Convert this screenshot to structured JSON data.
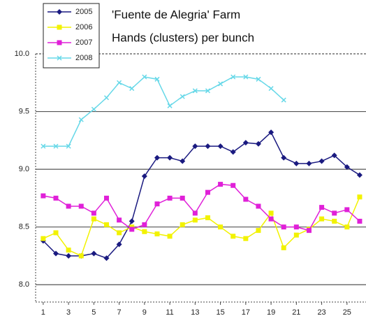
{
  "chart_data": {
    "type": "line",
    "title": "'Fuente de Alegria' Farm",
    "subtitle": "Hands (clusters) per bunch",
    "x": [
      1,
      2,
      3,
      4,
      5,
      6,
      7,
      8,
      9,
      10,
      11,
      12,
      13,
      14,
      15,
      16,
      17,
      18,
      19,
      20,
      21,
      22,
      23,
      24,
      25,
      26
    ],
    "xlim": [
      0.4,
      26.5
    ],
    "xticks": [
      1,
      3,
      5,
      7,
      9,
      11,
      13,
      15,
      17,
      19,
      21,
      23,
      25
    ],
    "ylim": [
      7.85,
      10.0
    ],
    "yticks": [
      {
        "value": 10,
        "label": "10.0"
      },
      9.5,
      {
        "value": 9,
        "label": "9.0"
      },
      8.5,
      {
        "value": 8,
        "label": "8.0"
      }
    ],
    "grid": true,
    "legend": "upper left",
    "series": [
      {
        "name": "2005",
        "color": "#1a1a80",
        "marker": "diamond",
        "values": [
          8.38,
          8.27,
          8.25,
          8.25,
          8.27,
          8.23,
          8.35,
          8.55,
          8.94,
          9.1,
          9.1,
          9.07,
          9.2,
          9.2,
          9.2,
          9.15,
          9.23,
          9.22,
          9.32,
          9.1,
          9.05,
          9.05,
          9.07,
          9.12,
          9.02,
          8.95
        ]
      },
      {
        "name": "2006",
        "color": "#f2f200",
        "marker": "square",
        "values": [
          8.4,
          8.45,
          8.3,
          8.25,
          8.57,
          8.52,
          8.45,
          8.5,
          8.46,
          8.44,
          8.42,
          8.52,
          8.56,
          8.58,
          8.5,
          8.42,
          8.4,
          8.47,
          8.62,
          8.32,
          8.43,
          8.48,
          8.57,
          8.55,
          8.5,
          8.76
        ]
      },
      {
        "name": "2007",
        "color": "#e020d8",
        "marker": "square",
        "values": [
          8.77,
          8.75,
          8.68,
          8.68,
          8.62,
          8.75,
          8.56,
          8.48,
          8.52,
          8.7,
          8.75,
          8.75,
          8.62,
          8.8,
          8.87,
          8.86,
          8.74,
          8.68,
          8.57,
          8.5,
          8.5,
          8.47,
          8.67,
          8.62,
          8.65,
          8.55
        ]
      },
      {
        "name": "2008",
        "color": "#66d8e8",
        "marker": "cross",
        "values": [
          9.2,
          9.2,
          9.2,
          9.43,
          9.52,
          9.62,
          9.75,
          9.7,
          9.8,
          9.78,
          9.55,
          9.63,
          9.68,
          9.68,
          9.74,
          9.8,
          9.8,
          9.78,
          9.7,
          9.6,
          null,
          null,
          null,
          null,
          null,
          null
        ]
      }
    ]
  }
}
